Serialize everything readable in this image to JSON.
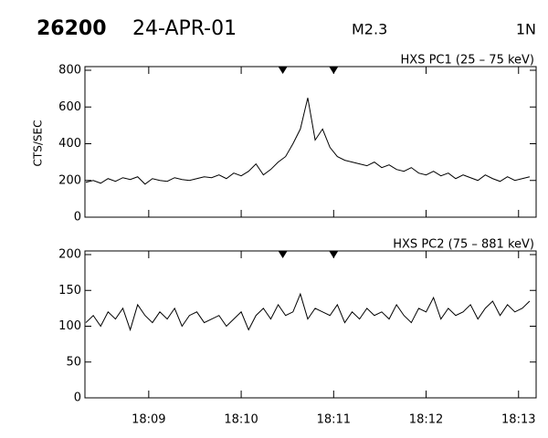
{
  "header": {
    "id": "26200",
    "date": "24-APR-01",
    "class": "M2.3",
    "location": "1N"
  },
  "chart_data": [
    {
      "type": "line",
      "title": "HXS PC1 (25 – 75 keV)",
      "y_label": "CTS/SEC",
      "xlim": [
        8.31,
        13.19
      ],
      "ylim": [
        0,
        800
      ],
      "yticks": [
        0,
        200,
        400,
        600,
        800
      ],
      "markers": [
        10.45,
        11.0
      ],
      "color": "#000000",
      "x": [
        8.32,
        8.4,
        8.48,
        8.56,
        8.64,
        8.72,
        8.8,
        8.88,
        8.96,
        9.04,
        9.12,
        9.2,
        9.28,
        9.36,
        9.44,
        9.52,
        9.6,
        9.68,
        9.76,
        9.84,
        9.92,
        10,
        10.08,
        10.16,
        10.24,
        10.32,
        10.4,
        10.48,
        10.56,
        10.64,
        10.72,
        10.8,
        10.88,
        10.96,
        11.04,
        11.12,
        11.2,
        11.28,
        11.36,
        11.44,
        11.52,
        11.6,
        11.68,
        11.76,
        11.84,
        11.92,
        12,
        12.08,
        12.16,
        12.24,
        12.32,
        12.4,
        12.48,
        12.56,
        12.64,
        12.72,
        12.8,
        12.88,
        12.96,
        13.04,
        13.12
      ],
      "values": [
        190,
        200,
        185,
        210,
        195,
        215,
        205,
        220,
        180,
        210,
        200,
        195,
        215,
        205,
        200,
        210,
        220,
        215,
        230,
        210,
        240,
        225,
        250,
        290,
        230,
        260,
        300,
        330,
        400,
        480,
        650,
        420,
        480,
        380,
        330,
        310,
        300,
        290,
        280,
        300,
        270,
        285,
        260,
        250,
        270,
        240,
        230,
        250,
        225,
        240,
        210,
        230,
        215,
        200,
        230,
        210,
        195,
        220,
        200,
        210,
        220
      ]
    },
    {
      "type": "line",
      "title": "HXS PC2 (75 – 881 keV)",
      "xlim": [
        8.31,
        13.19
      ],
      "ylim": [
        0,
        200
      ],
      "yticks": [
        0,
        50,
        100,
        150,
        200
      ],
      "xticks": [
        {
          "value": 9,
          "label": "18:09"
        },
        {
          "value": 10,
          "label": "18:10"
        },
        {
          "value": 11,
          "label": "18:11"
        },
        {
          "value": 12,
          "label": "18:12"
        },
        {
          "value": 13,
          "label": "18:13"
        }
      ],
      "markers": [
        10.45,
        11.0
      ],
      "color": "#000000",
      "x": [
        8.32,
        8.4,
        8.48,
        8.56,
        8.64,
        8.72,
        8.8,
        8.88,
        8.96,
        9.04,
        9.12,
        9.2,
        9.28,
        9.36,
        9.44,
        9.52,
        9.6,
        9.68,
        9.76,
        9.84,
        9.92,
        10,
        10.08,
        10.16,
        10.24,
        10.32,
        10.4,
        10.48,
        10.56,
        10.64,
        10.72,
        10.8,
        10.88,
        10.96,
        11.04,
        11.12,
        11.2,
        11.28,
        11.36,
        11.44,
        11.52,
        11.6,
        11.68,
        11.76,
        11.84,
        11.92,
        12,
        12.08,
        12.16,
        12.24,
        12.32,
        12.4,
        12.48,
        12.56,
        12.64,
        12.72,
        12.8,
        12.88,
        12.96,
        13.04,
        13.12
      ],
      "values": [
        105,
        115,
        100,
        120,
        110,
        125,
        95,
        130,
        115,
        105,
        120,
        110,
        125,
        100,
        115,
        120,
        105,
        110,
        115,
        100,
        110,
        120,
        95,
        115,
        125,
        110,
        130,
        115,
        120,
        145,
        110,
        125,
        120,
        115,
        130,
        105,
        120,
        110,
        125,
        115,
        120,
        110,
        130,
        115,
        105,
        125,
        120,
        140,
        110,
        125,
        115,
        120,
        130,
        110,
        125,
        135,
        115,
        130,
        120,
        125,
        135
      ]
    }
  ]
}
